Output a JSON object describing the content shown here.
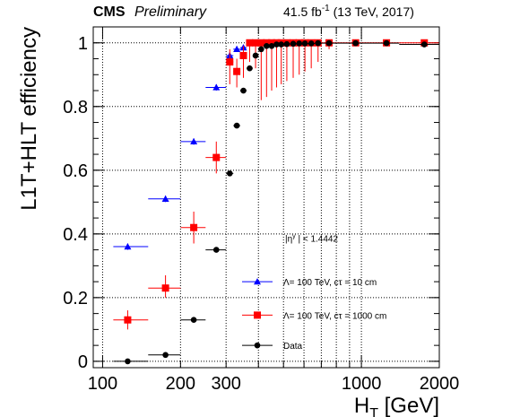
{
  "header": {
    "experiment": "CMS",
    "status": "Preliminary",
    "lumi_value": "41.5 fb",
    "lumi_exp": "-1",
    "energy_year": "(13 TeV, 2017)"
  },
  "annotation": "|η",
  "annotation_sup": "γ",
  "annotation_rest": " | < 1.4442",
  "chart_data": {
    "type": "scatter",
    "xlabel": "H",
    "xlabel_sub": "T",
    "xlabel_unit": " [GeV]",
    "ylabel": "L1T+HLT efficiency",
    "xscale": "log",
    "xlim": [
      92,
      2000
    ],
    "ylim": [
      -0.02,
      1.05
    ],
    "x_ticks": [
      {
        "value": 100,
        "label": "100"
      },
      {
        "value": 200,
        "label": "200"
      },
      {
        "value": 300,
        "label": "300"
      },
      {
        "value": 1000,
        "label": "1000"
      },
      {
        "value": 2000,
        "label": "2000"
      }
    ],
    "y_ticks": [
      {
        "value": 0,
        "label": "0"
      },
      {
        "value": 0.2,
        "label": "0.2"
      },
      {
        "value": 0.4,
        "label": "0.4"
      },
      {
        "value": 0.6,
        "label": "0.6"
      },
      {
        "value": 0.8,
        "label": "0.8"
      },
      {
        "value": 1,
        "label": "1"
      }
    ],
    "grid": true,
    "legend_position": "bottom-right",
    "series": [
      {
        "name": "Λ= 100 TeV, cτ = 10 cm",
        "color": "#0000ff",
        "marker": "triangle",
        "points": [
          {
            "x": 125,
            "xlo": 110,
            "xhi": 150,
            "y": 0.36,
            "ylo": 0.35,
            "yhi": 0.37
          },
          {
            "x": 175,
            "xlo": 150,
            "xhi": 200,
            "y": 0.51,
            "ylo": 0.5,
            "yhi": 0.52
          },
          {
            "x": 225,
            "xlo": 200,
            "xhi": 250,
            "y": 0.69,
            "ylo": 0.68,
            "yhi": 0.7
          },
          {
            "x": 275,
            "xlo": 250,
            "xhi": 300,
            "y": 0.86,
            "ylo": 0.85,
            "yhi": 0.87
          },
          {
            "x": 310,
            "xlo": 300,
            "xhi": 320,
            "y": 0.96,
            "ylo": 0.95,
            "yhi": 0.97
          },
          {
            "x": 330,
            "xlo": 320,
            "xhi": 340,
            "y": 0.98,
            "ylo": 0.975,
            "yhi": 0.99
          },
          {
            "x": 350,
            "xlo": 340,
            "xhi": 360,
            "y": 0.985,
            "ylo": 0.98,
            "yhi": 0.99
          }
        ]
      },
      {
        "name": "Λ= 100 TeV, cτ = 1000 cm",
        "color": "#ff0000",
        "marker": "square",
        "points": [
          {
            "x": 125,
            "xlo": 110,
            "xhi": 150,
            "y": 0.13,
            "ylo": 0.1,
            "yhi": 0.16
          },
          {
            "x": 175,
            "xlo": 150,
            "xhi": 200,
            "y": 0.23,
            "ylo": 0.2,
            "yhi": 0.27
          },
          {
            "x": 225,
            "xlo": 200,
            "xhi": 250,
            "y": 0.42,
            "ylo": 0.37,
            "yhi": 0.47
          },
          {
            "x": 275,
            "xlo": 250,
            "xhi": 300,
            "y": 0.64,
            "ylo": 0.59,
            "yhi": 0.69
          },
          {
            "x": 310,
            "xlo": 300,
            "xhi": 320,
            "y": 0.94,
            "ylo": 0.87,
            "yhi": 0.98
          },
          {
            "x": 330,
            "xlo": 320,
            "xhi": 340,
            "y": 0.91,
            "ylo": 0.86,
            "yhi": 0.95
          },
          {
            "x": 350,
            "xlo": 340,
            "xhi": 360,
            "y": 0.96,
            "ylo": 0.89,
            "yhi": 0.99
          },
          {
            "x": 370,
            "xlo": 360,
            "xhi": 380,
            "y": 1.0,
            "ylo": 0.94,
            "yhi": 1.0
          },
          {
            "x": 390,
            "xlo": 380,
            "xhi": 400,
            "y": 1.0,
            "ylo": 0.92,
            "yhi": 1.0
          },
          {
            "x": 410,
            "xlo": 400,
            "xhi": 420,
            "y": 1.0,
            "ylo": 0.82,
            "yhi": 1.0
          },
          {
            "x": 430,
            "xlo": 420,
            "xhi": 440,
            "y": 1.0,
            "ylo": 0.83,
            "yhi": 1.0
          },
          {
            "x": 450,
            "xlo": 440,
            "xhi": 460,
            "y": 1.0,
            "ylo": 0.85,
            "yhi": 1.0
          },
          {
            "x": 470,
            "xlo": 460,
            "xhi": 480,
            "y": 1.0,
            "ylo": 0.86,
            "yhi": 1.0
          },
          {
            "x": 490,
            "xlo": 480,
            "xhi": 500,
            "y": 1.0,
            "ylo": 0.87,
            "yhi": 1.0
          },
          {
            "x": 515,
            "xlo": 500,
            "xhi": 530,
            "y": 1.0,
            "ylo": 0.88,
            "yhi": 1.0
          },
          {
            "x": 545,
            "xlo": 530,
            "xhi": 560,
            "y": 1.0,
            "ylo": 0.89,
            "yhi": 1.0
          },
          {
            "x": 575,
            "xlo": 560,
            "xhi": 590,
            "y": 1.0,
            "ylo": 0.9,
            "yhi": 1.0
          },
          {
            "x": 605,
            "xlo": 590,
            "xhi": 620,
            "y": 1.0,
            "ylo": 0.91,
            "yhi": 1.0
          },
          {
            "x": 640,
            "xlo": 620,
            "xhi": 660,
            "y": 1.0,
            "ylo": 0.92,
            "yhi": 1.0
          },
          {
            "x": 680,
            "xlo": 660,
            "xhi": 700,
            "y": 1.0,
            "ylo": 0.94,
            "yhi": 1.0
          },
          {
            "x": 750,
            "xlo": 700,
            "xhi": 800,
            "y": 1.0,
            "ylo": 0.98,
            "yhi": 1.0
          },
          {
            "x": 950,
            "xlo": 800,
            "xhi": 1100,
            "y": 1.0,
            "ylo": 1.0,
            "yhi": 1.0
          },
          {
            "x": 1250,
            "xlo": 1100,
            "xhi": 1400,
            "y": 1.0,
            "ylo": 1.0,
            "yhi": 1.0
          },
          {
            "x": 1750,
            "xlo": 1400,
            "xhi": 2000,
            "y": 1.0,
            "ylo": 1.0,
            "yhi": 1.0
          }
        ]
      },
      {
        "name": "Data",
        "color": "#000000",
        "marker": "circle",
        "points": [
          {
            "x": 125,
            "xlo": 110,
            "xhi": 150,
            "y": 0.0,
            "ylo": 0.0,
            "yhi": 0.0
          },
          {
            "x": 175,
            "xlo": 150,
            "xhi": 200,
            "y": 0.02,
            "ylo": 0.02,
            "yhi": 0.02
          },
          {
            "x": 225,
            "xlo": 200,
            "xhi": 250,
            "y": 0.13,
            "ylo": 0.125,
            "yhi": 0.135
          },
          {
            "x": 275,
            "xlo": 250,
            "xhi": 300,
            "y": 0.35,
            "ylo": 0.345,
            "yhi": 0.355
          },
          {
            "x": 310,
            "xlo": 300,
            "xhi": 320,
            "y": 0.59,
            "ylo": 0.585,
            "yhi": 0.595
          },
          {
            "x": 330,
            "xlo": 320,
            "xhi": 340,
            "y": 0.74,
            "ylo": 0.735,
            "yhi": 0.745
          },
          {
            "x": 350,
            "xlo": 340,
            "xhi": 360,
            "y": 0.85,
            "ylo": 0.845,
            "yhi": 0.855
          },
          {
            "x": 370,
            "xlo": 360,
            "xhi": 380,
            "y": 0.92,
            "ylo": 0.915,
            "yhi": 0.925
          },
          {
            "x": 390,
            "xlo": 380,
            "xhi": 400,
            "y": 0.96,
            "ylo": 0.955,
            "yhi": 0.965
          },
          {
            "x": 410,
            "xlo": 400,
            "xhi": 420,
            "y": 0.98,
            "ylo": 0.975,
            "yhi": 0.985
          },
          {
            "x": 430,
            "xlo": 420,
            "xhi": 440,
            "y": 0.99,
            "ylo": 0.985,
            "yhi": 0.995
          },
          {
            "x": 450,
            "xlo": 440,
            "xhi": 460,
            "y": 0.99,
            "ylo": 0.985,
            "yhi": 0.995
          },
          {
            "x": 470,
            "xlo": 460,
            "xhi": 480,
            "y": 0.995,
            "ylo": 0.99,
            "yhi": 1.0
          },
          {
            "x": 490,
            "xlo": 480,
            "xhi": 500,
            "y": 0.995,
            "ylo": 0.99,
            "yhi": 1.0
          },
          {
            "x": 515,
            "xlo": 500,
            "xhi": 530,
            "y": 0.996,
            "ylo": 0.99,
            "yhi": 1.0
          },
          {
            "x": 545,
            "xlo": 530,
            "xhi": 560,
            "y": 0.997,
            "ylo": 0.99,
            "yhi": 1.0
          },
          {
            "x": 575,
            "xlo": 560,
            "xhi": 590,
            "y": 0.998,
            "ylo": 0.99,
            "yhi": 1.0
          },
          {
            "x": 605,
            "xlo": 590,
            "xhi": 620,
            "y": 0.998,
            "ylo": 0.99,
            "yhi": 1.0
          },
          {
            "x": 640,
            "xlo": 620,
            "xhi": 660,
            "y": 0.998,
            "ylo": 0.99,
            "yhi": 1.0
          },
          {
            "x": 680,
            "xlo": 660,
            "xhi": 700,
            "y": 0.999,
            "ylo": 0.99,
            "yhi": 1.0
          },
          {
            "x": 750,
            "xlo": 700,
            "xhi": 800,
            "y": 0.999,
            "ylo": 0.995,
            "yhi": 1.0
          },
          {
            "x": 950,
            "xlo": 800,
            "xhi": 1100,
            "y": 0.999,
            "ylo": 0.995,
            "yhi": 1.0
          },
          {
            "x": 1250,
            "xlo": 1100,
            "xhi": 1400,
            "y": 0.999,
            "ylo": 0.995,
            "yhi": 1.0
          },
          {
            "x": 1750,
            "xlo": 1400,
            "xhi": 2000,
            "y": 0.995,
            "ylo": 0.99,
            "yhi": 1.0
          }
        ]
      }
    ]
  }
}
